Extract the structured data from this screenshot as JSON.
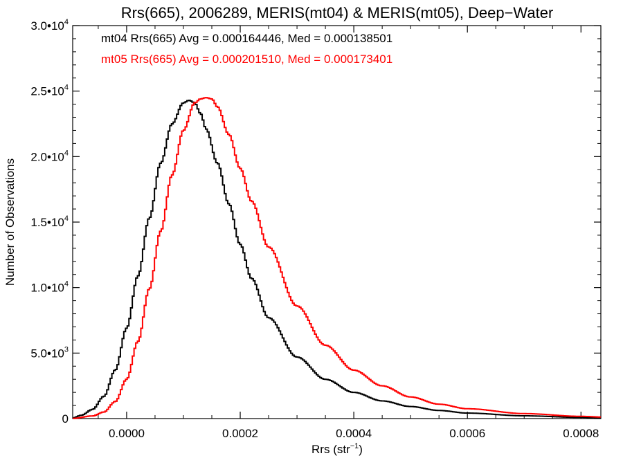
{
  "chart_data": {
    "type": "line",
    "title": "Rrs(665), 2006289, MERIS(mt04) & MERIS(mt05), Deep−Water",
    "xlabel_main": "Rrs (str",
    "xlabel_sup": "−1",
    "xlabel_close": ")",
    "ylabel": "Number of Observations",
    "xlim": [
      -9.5e-05,
      0.000835
    ],
    "ylim": [
      0,
      30000
    ],
    "x_ticks": [
      {
        "value": 0.0,
        "label": "0.0000"
      },
      {
        "value": 0.0002,
        "label": "0.0002"
      },
      {
        "value": 0.0004,
        "label": "0.0004"
      },
      {
        "value": 0.0006,
        "label": "0.0006"
      },
      {
        "value": 0.0008,
        "label": "0.0008"
      }
    ],
    "y_ticks": [
      {
        "value": 0,
        "mant": "0",
        "exp": ""
      },
      {
        "value": 5000,
        "mant": "5.0•10",
        "exp": "3"
      },
      {
        "value": 10000,
        "mant": "1.0•10",
        "exp": "4"
      },
      {
        "value": 15000,
        "mant": "1.5•10",
        "exp": "4"
      },
      {
        "value": 20000,
        "mant": "2.0•10",
        "exp": "4"
      },
      {
        "value": 25000,
        "mant": "2.5•10",
        "exp": "4"
      },
      {
        "value": 30000,
        "mant": "3.0•10",
        "exp": "4"
      }
    ],
    "grid": false,
    "legend_position": "top-left",
    "series": [
      {
        "name": "mt04",
        "color": "#000000",
        "legend_text": "mt04 Rrs(665) Avg = 0.000164446, Med = 0.000138501",
        "x": [
          -9.5e-05,
          -8e-05,
          -6e-05,
          -4e-05,
          -2e-05,
          0.0,
          2e-05,
          4e-05,
          6e-05,
          8e-05,
          0.0001,
          0.00011,
          0.00012,
          0.00013,
          0.00014,
          0.00016,
          0.00018,
          0.0002,
          0.00022,
          0.00025,
          0.0003,
          0.00035,
          0.0004,
          0.00045,
          0.0005,
          0.00055,
          0.0006,
          0.0007,
          0.0008,
          0.000835
        ],
        "y": [
          40,
          250,
          700,
          1700,
          3700,
          6900,
          10900,
          15300,
          19500,
          22500,
          24100,
          24300,
          24100,
          23300,
          22100,
          19500,
          16400,
          13300,
          10700,
          7700,
          4700,
          3000,
          2000,
          1350,
          920,
          620,
          420,
          210,
          90,
          60
        ]
      },
      {
        "name": "mt05",
        "color": "#ff0000",
        "legend_text": "mt05 Rrs(665) Avg = 0.000201510, Med = 0.000173401",
        "x": [
          -9.5e-05,
          -6e-05,
          -4e-05,
          -2e-05,
          0.0,
          2e-05,
          4e-05,
          6e-05,
          8e-05,
          0.0001,
          0.00012,
          0.00013,
          0.00014,
          0.00015,
          0.00016,
          0.00018,
          0.0002,
          0.00022,
          0.00025,
          0.0003,
          0.00035,
          0.0004,
          0.00045,
          0.0005,
          0.00055,
          0.0006,
          0.0007,
          0.0008,
          0.000835
        ],
        "y": [
          10,
          200,
          500,
          1300,
          3000,
          5900,
          9900,
          14300,
          18600,
          22000,
          24100,
          24400,
          24500,
          24400,
          23800,
          21700,
          19100,
          16600,
          13100,
          8600,
          5600,
          3700,
          2500,
          1650,
          1100,
          750,
          380,
          170,
          120
        ]
      }
    ]
  }
}
